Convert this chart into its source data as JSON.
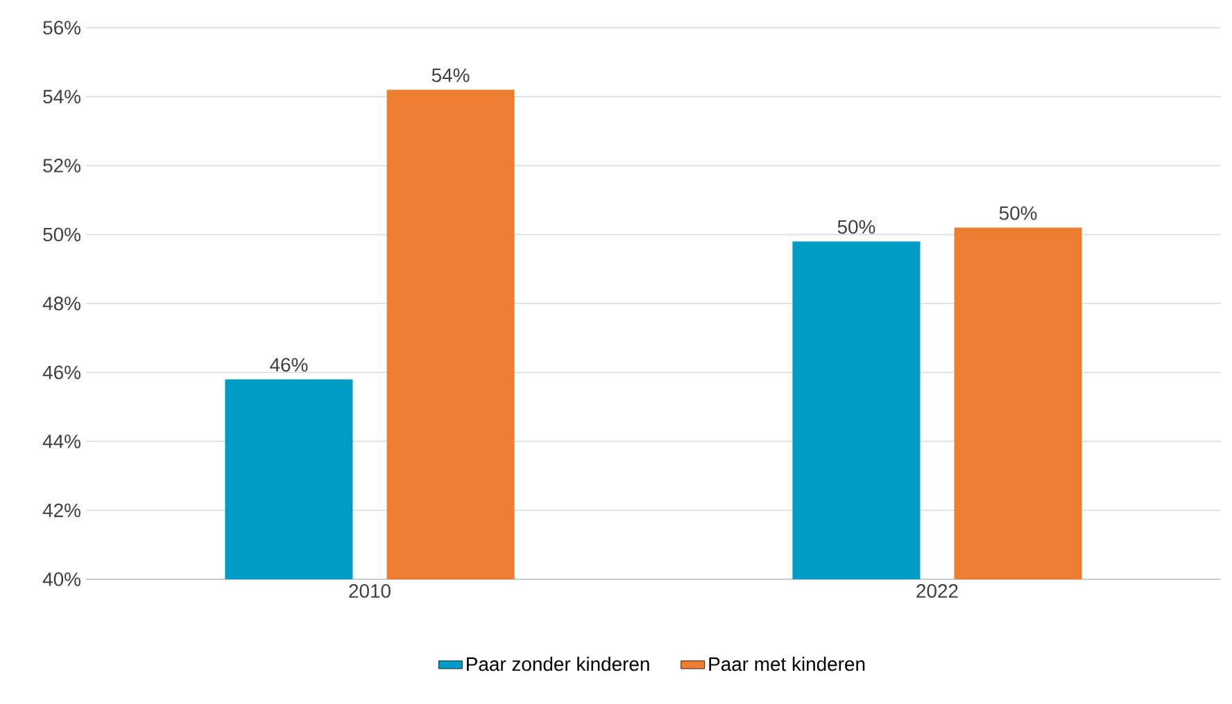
{
  "chart_data": {
    "type": "bar",
    "categories": [
      "2010",
      "2022"
    ],
    "series": [
      {
        "name": "Paar zonder kinderen",
        "color": "#009cc5",
        "values": [
          45.8,
          49.8
        ],
        "value_labels": [
          "46%",
          "50%"
        ]
      },
      {
        "name": "Paar met kinderen",
        "color": "#ed7d31",
        "values": [
          54.2,
          50.2
        ],
        "value_labels": [
          "54%",
          "50%"
        ]
      }
    ],
    "ylim": [
      40,
      56
    ],
    "yticks": [
      {
        "value": 40,
        "label": "40%"
      },
      {
        "value": 42,
        "label": "42%"
      },
      {
        "value": 44,
        "label": "44%"
      },
      {
        "value": 46,
        "label": "46%"
      },
      {
        "value": 48,
        "label": "48%"
      },
      {
        "value": 50,
        "label": "50%"
      },
      {
        "value": 52,
        "label": "52%"
      },
      {
        "value": 54,
        "label": "54%"
      },
      {
        "value": 56,
        "label": "56%"
      }
    ],
    "grid": "y",
    "legend": "bottom"
  }
}
